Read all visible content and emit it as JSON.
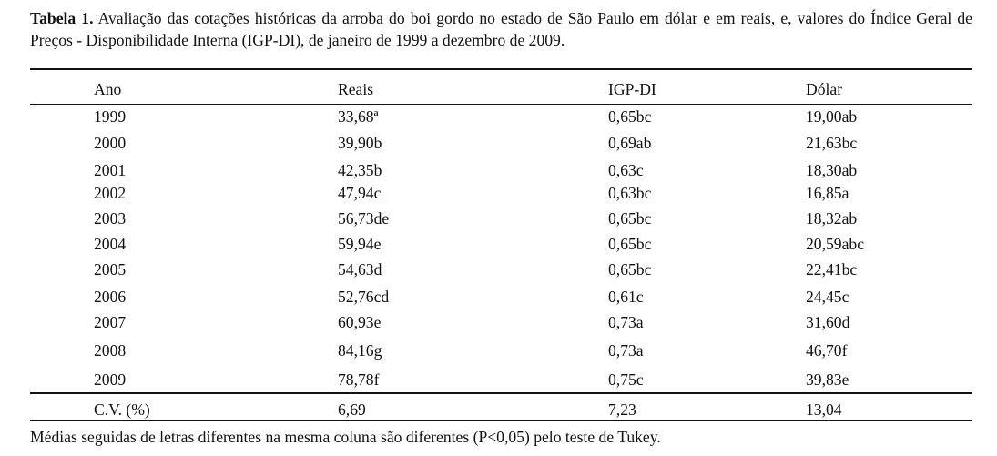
{
  "caption": {
    "label": "Tabela 1.",
    "text": "Avaliação das cotações históricas da arroba do boi gordo no estado de São Paulo em dólar e em reais, e, valores do Índice Geral de Preços - Disponibilidade Interna (IGP-DI), de janeiro de 1999 a dezembro de 2009."
  },
  "table": {
    "header": [
      "Ano",
      "Reais",
      "IGP-DI",
      "Dólar"
    ],
    "rows": [
      [
        "1999",
        "33,68ª",
        "0,65bc",
        "19,00ab"
      ],
      [
        "2000",
        "39,90b",
        "0,69ab",
        "21,63bc"
      ],
      [
        "2001",
        "42,35b",
        "0,63c",
        "18,30ab"
      ],
      [
        "2002",
        "47,94c",
        "0,63bc",
        "16,85a"
      ],
      [
        "2003",
        "56,73de",
        "0,65bc",
        "18,32ab"
      ],
      [
        "2004",
        "59,94e",
        "0,65bc",
        "20,59abc"
      ],
      [
        "2005",
        "54,63d",
        "0,65bc",
        "22,41bc"
      ],
      [
        "2006",
        "52,76cd",
        "0,61c",
        "24,45c"
      ],
      [
        "2007",
        "60,93e",
        "0,73a",
        "31,60d"
      ],
      [
        "2008",
        "84,16g",
        "0,73a",
        "46,70f"
      ],
      [
        "2009",
        "78,78f",
        "0,75c",
        "39,83e"
      ]
    ],
    "cv": [
      "C.V. (%)",
      "6,69",
      "7,23",
      "13,04"
    ],
    "footnote": "Médias seguidas de letras diferentes na mesma coluna são diferentes (P<0,05) pelo teste de Tukey."
  }
}
